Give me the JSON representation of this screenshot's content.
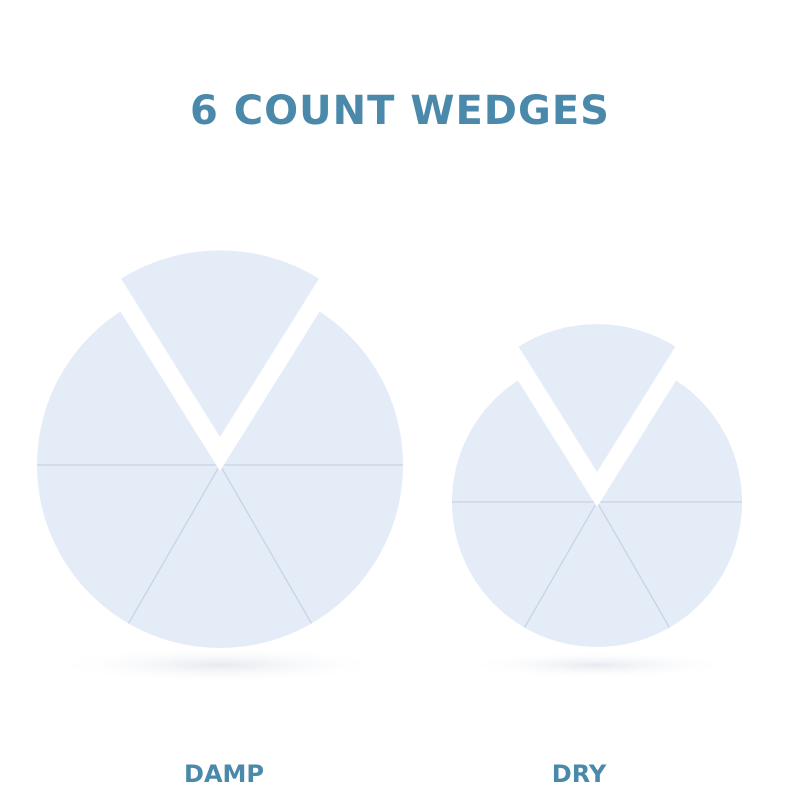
{
  "title": "6 COUNT WEDGES",
  "labels": {
    "damp": "DAMP",
    "dry": "DRY"
  },
  "colors": {
    "text": "#4a89aa",
    "sponge": "#e4ecf8",
    "seam": "#c9d3e4"
  }
}
